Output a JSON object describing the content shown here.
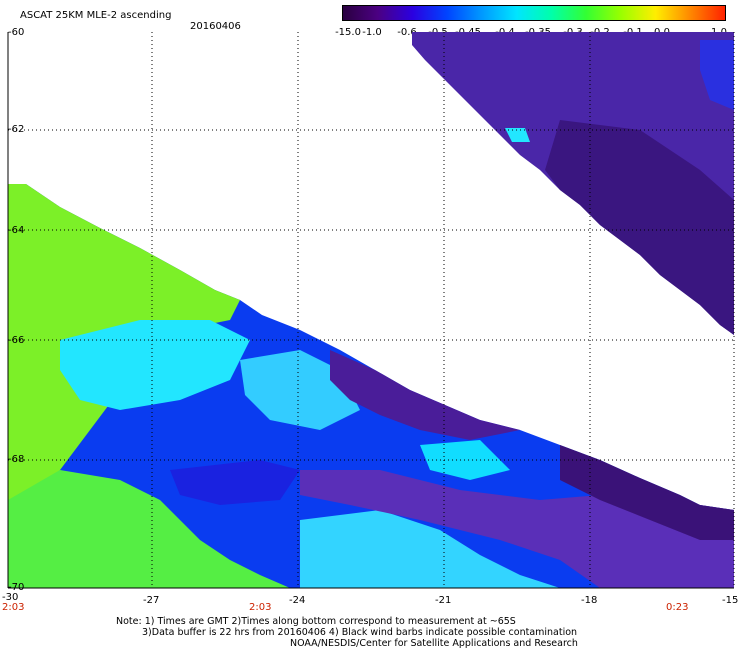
{
  "header": {
    "title": "ASCAT 25KM MLE-2 ascending",
    "date": "20160406"
  },
  "colorbar": {
    "labels": [
      "-15.0",
      "-1.0",
      "-0.6",
      "-0.5",
      "-0.45",
      "-0.4",
      "-0.35",
      "-0.3",
      "-0.2",
      "-0.1",
      "0.0",
      "1.0"
    ],
    "colors": [
      "#2a0040",
      "#4b0082",
      "#2b00e0",
      "#0044ff",
      "#0099ff",
      "#00e5ff",
      "#00ffaa",
      "#33ff33",
      "#99ff00",
      "#ffee00",
      "#ff8800",
      "#ff2200"
    ]
  },
  "axes": {
    "lat_labels": [
      "-60",
      "-62",
      "-64",
      "-66",
      "-68",
      "-70"
    ],
    "lon_labels": [
      "-27",
      "-24",
      "-21",
      "-18",
      "-15"
    ],
    "lon_corner": "-30"
  },
  "times": [
    "2:03",
    "2:03",
    "0:23"
  ],
  "notes": {
    "line1": "Note: 1) Times are GMT 2)Times along bottom correspond to measurement at ~65S",
    "line2": "3)Data buffer is 22 hrs from 20160406 4) Black wind barbs indicate possible contamination",
    "line3": "NOAA/NESDIS/Center for Satellite Applications and Research"
  }
}
